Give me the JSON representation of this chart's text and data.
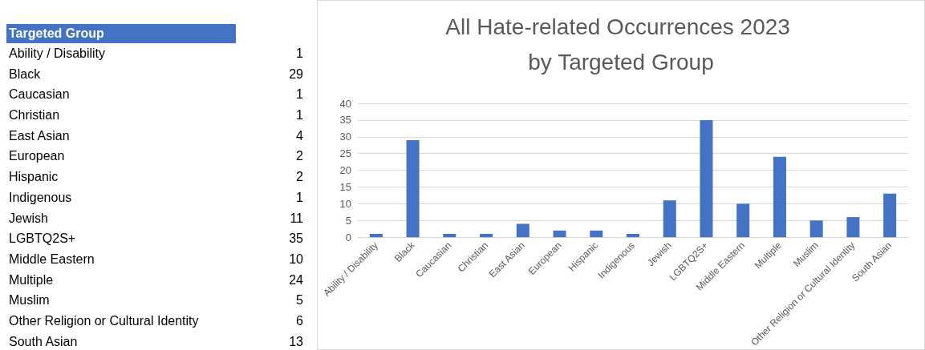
{
  "chart_data": [
    {
      "type": "other",
      "title": "Targeted Group",
      "categories": [
        "Ability / Disability",
        "Black",
        "Caucasian",
        "Christian",
        "East Asian",
        "European",
        "Hispanic",
        "Indigenous",
        "Jewish",
        "LGBTQ2S+",
        "Middle Eastern",
        "Multiple",
        "Muslim",
        "Other Religion or Cultural Identity",
        "South Asian"
      ],
      "values": [
        1,
        29,
        1,
        1,
        4,
        2,
        2,
        1,
        11,
        35,
        10,
        24,
        5,
        6,
        13
      ],
      "color": "#4472c4",
      "data_labels": true
    },
    {
      "type": "bar",
      "title": "All Hate-related Occurrences 2023 by Targeted Group",
      "categories": [
        "Ability / Disability",
        "Black",
        "Caucasian",
        "Christian",
        "East Asian",
        "European",
        "Hispanic",
        "Indigenous",
        "Jewish",
        "LGBTQ2S+",
        "Middle Eastern",
        "Multiple",
        "Muslim",
        "Other Religion or Cultural Identity",
        "South Asian"
      ],
      "values": [
        1,
        29,
        1,
        1,
        4,
        2,
        2,
        1,
        11,
        35,
        10,
        24,
        5,
        6,
        13
      ],
      "color": "#4472c4",
      "ylim": [
        0,
        40
      ],
      "yticks": [
        0,
        5,
        10,
        15,
        20,
        25,
        30,
        35,
        40
      ],
      "grid": "y"
    }
  ]
}
